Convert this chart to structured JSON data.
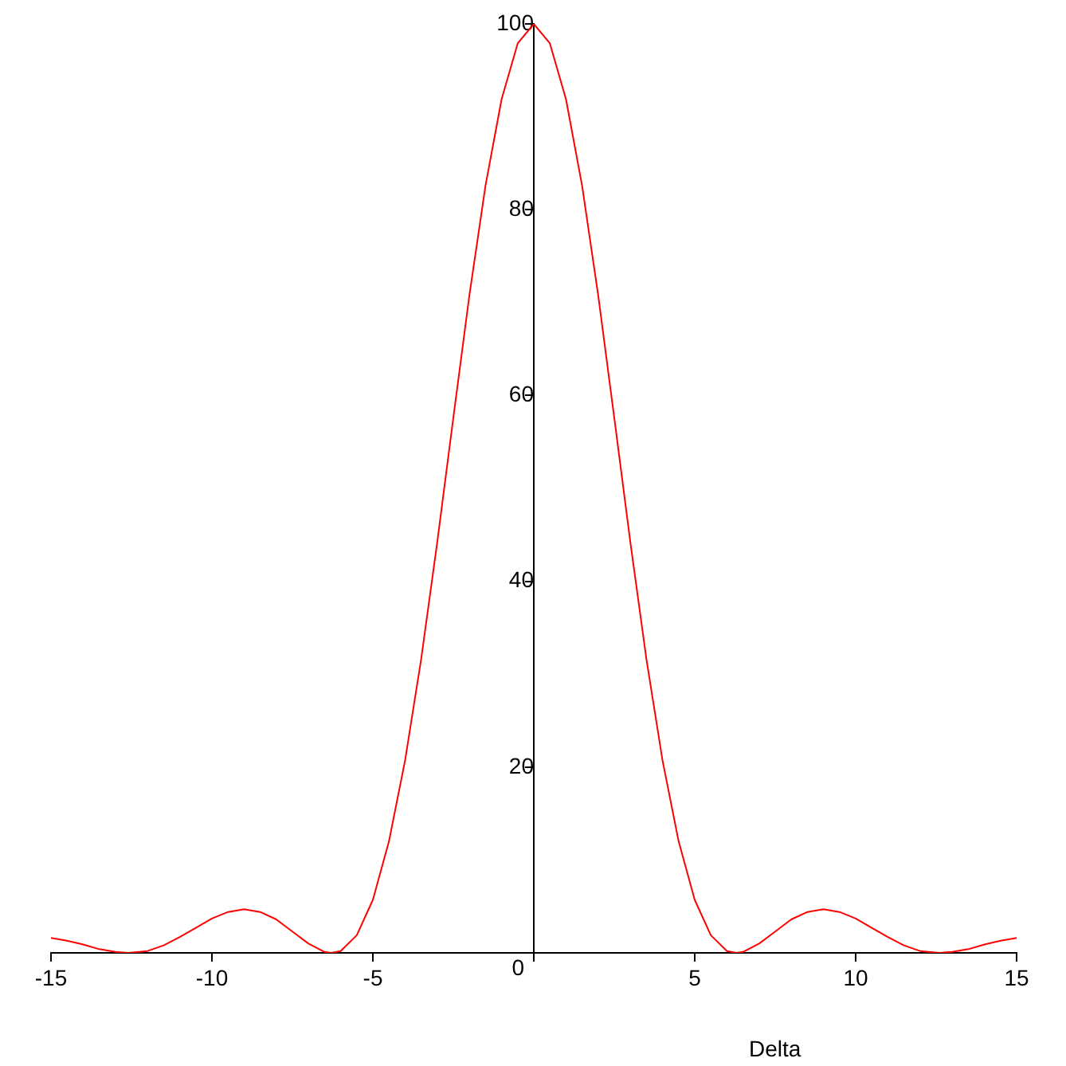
{
  "chart_data": {
    "type": "line",
    "xlabel": "Delta",
    "x": [
      -15,
      -14.5,
      -14,
      -13.5,
      -13,
      -12.6,
      -12,
      -11.5,
      -11,
      -10.5,
      -10,
      -9.5,
      -9,
      -8.5,
      -8,
      -7.5,
      -7,
      -6.5,
      -6.3,
      -6,
      -5.5,
      -5,
      -4.5,
      -4,
      -3.5,
      -3,
      -2.5,
      -2,
      -1.5,
      -1,
      -0.5,
      0,
      0.5,
      1,
      1.5,
      2,
      2.5,
      3,
      3.5,
      4,
      4.5,
      5,
      5.5,
      6,
      6.3,
      6.5,
      7,
      7.5,
      8,
      8.5,
      9,
      9.5,
      10,
      10.5,
      11,
      11.5,
      12,
      12.6,
      13,
      13.5,
      14,
      14.5,
      15
    ],
    "series": [
      {
        "color": "#ff0000",
        "values": [
          1.6,
          1.3,
          0.9,
          0.4,
          0.1,
          0,
          0.2,
          0.8,
          1.7,
          2.7,
          3.7,
          4.4,
          4.7,
          4.4,
          3.6,
          2.3,
          1,
          0.1,
          0,
          0.2,
          1.9,
          5.7,
          12,
          20.7,
          31.6,
          44.2,
          57.6,
          70.8,
          82.6,
          91.9,
          97.9,
          100,
          97.9,
          91.9,
          82.6,
          70.8,
          57.6,
          44.2,
          31.6,
          20.7,
          12,
          5.7,
          1.9,
          0.2,
          0,
          0.1,
          1,
          2.3,
          3.6,
          4.4,
          4.7,
          4.4,
          3.7,
          2.7,
          1.7,
          0.8,
          0.2,
          0,
          0.1,
          0.4,
          0.9,
          1.3,
          1.6
        ]
      }
    ],
    "xlim": [
      -15,
      15
    ],
    "ylim": [
      0,
      100
    ],
    "xticks": [
      -15,
      -10,
      -5,
      {
        "value": 0,
        "label": null
      },
      5,
      10,
      15
    ],
    "yticks": [
      0,
      20,
      40,
      60,
      80,
      100
    ],
    "grid": false,
    "legend": false,
    "marker": "none",
    "line_style": "solid"
  }
}
